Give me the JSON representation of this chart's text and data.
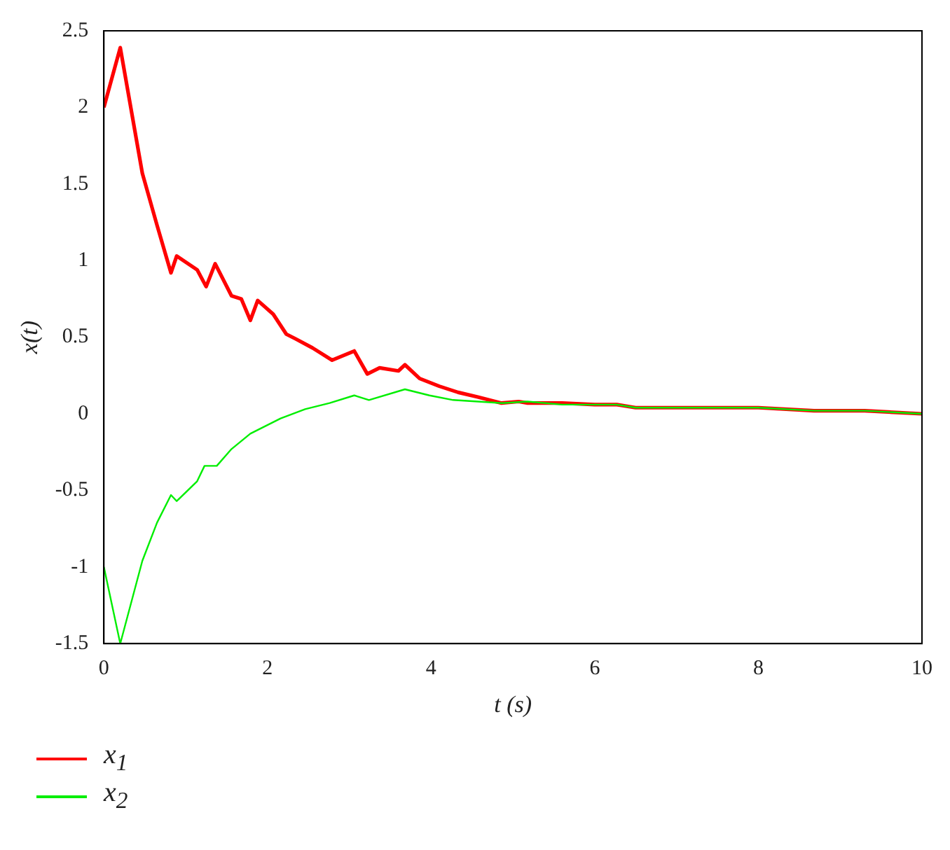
{
  "chart_data": {
    "type": "line",
    "xlabel": "t (s)",
    "ylabel": "x(t)",
    "xlim": [
      0,
      10
    ],
    "xticks": [
      0,
      2,
      4,
      6,
      8,
      10
    ],
    "ylim": [
      -1.5,
      2.5
    ],
    "yticks": [
      -1.5,
      -1,
      -0.5,
      0,
      0.5,
      1,
      1.5,
      2,
      2.5
    ],
    "grid": false,
    "legend": "bottom left",
    "marker": "none",
    "line_style": "solid",
    "series": [
      {
        "name": "x$_{1}$",
        "color": "#ff0000",
        "x": [
          0,
          0.2,
          0.47,
          0.65,
          0.82,
          0.89,
          1.14,
          1.25,
          1.36,
          1.56,
          1.68,
          1.79,
          1.88,
          2.07,
          2.23,
          2.34,
          2.55,
          2.79,
          3.06,
          3.22,
          3.37,
          3.6,
          3.68,
          3.86,
          4.1,
          4.33,
          4.57,
          4.86,
          5.07,
          5.18,
          5.6,
          6.0,
          6.27,
          6.5,
          7.0,
          7.48,
          8.0,
          8.68,
          9.3,
          10
        ],
        "values": [
          2.0,
          2.39,
          1.57,
          1.23,
          0.92,
          1.03,
          0.94,
          0.83,
          0.98,
          0.77,
          0.75,
          0.61,
          0.74,
          0.65,
          0.52,
          0.49,
          0.43,
          0.35,
          0.41,
          0.26,
          0.3,
          0.28,
          0.32,
          0.23,
          0.18,
          0.14,
          0.11,
          0.07,
          0.08,
          0.07,
          0.07,
          0.06,
          0.06,
          0.04,
          0.04,
          0.04,
          0.04,
          0.02,
          0.02,
          0.0
        ]
      },
      {
        "name": "x$_{2}$",
        "color": "#00ee00",
        "x": [
          0,
          0.2,
          0.47,
          0.65,
          0.82,
          0.89,
          1.14,
          1.23,
          1.38,
          1.56,
          1.79,
          2.16,
          2.46,
          2.76,
          3.06,
          3.24,
          3.68,
          3.98,
          4.27,
          4.87,
          5.18,
          5.6,
          6.0,
          6.27,
          6.5,
          7.0,
          7.48,
          8.0,
          8.68,
          9.3,
          10
        ],
        "values": [
          -1.0,
          -1.5,
          -0.96,
          -0.71,
          -0.53,
          -0.57,
          -0.44,
          -0.34,
          -0.34,
          -0.23,
          -0.13,
          -0.03,
          0.03,
          0.07,
          0.12,
          0.09,
          0.16,
          0.12,
          0.09,
          0.07,
          0.08,
          0.06,
          0.06,
          0.06,
          0.04,
          0.04,
          0.04,
          0.04,
          0.02,
          0.02,
          0.0
        ]
      }
    ]
  }
}
